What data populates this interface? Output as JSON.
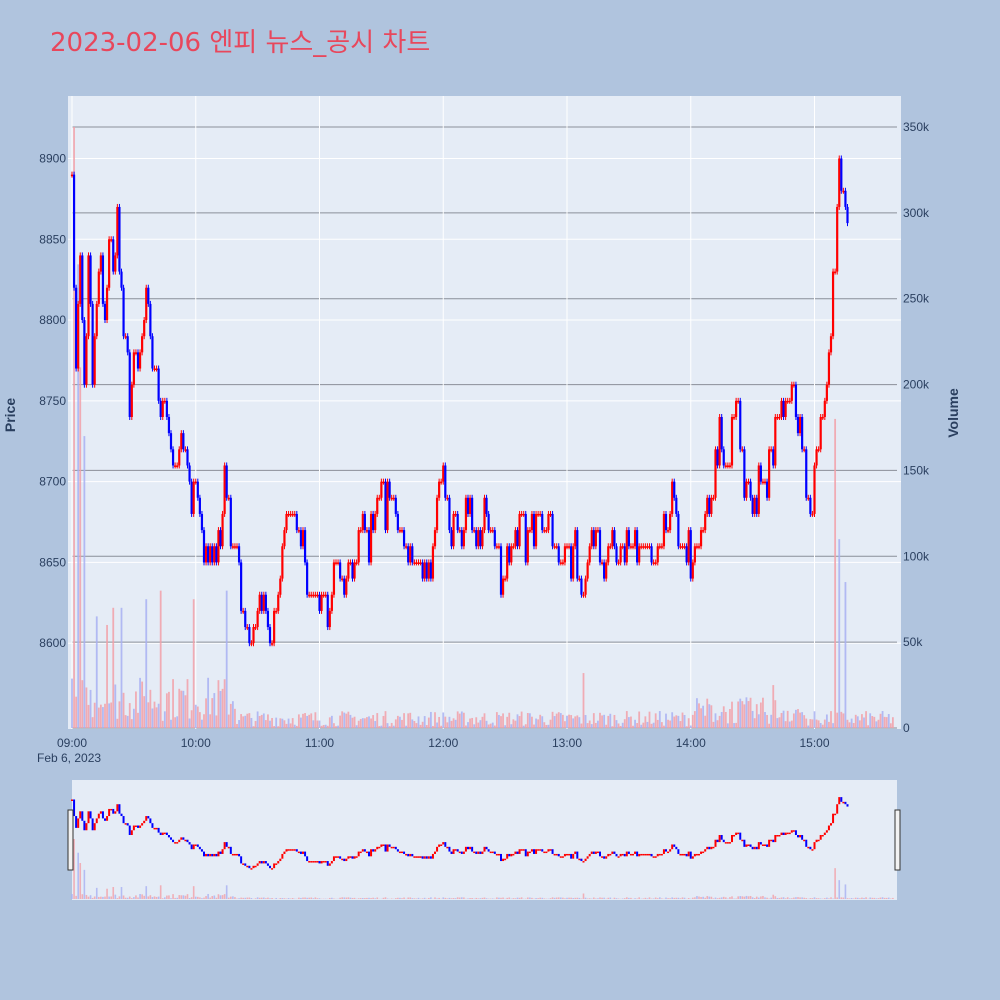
{
  "title": "2023-02-06 엔피 뉴스_공시 차트",
  "colors": {
    "page_bg": "#b0c4de",
    "plot_bg": "#e5ecf6",
    "up": "#ff0000",
    "down": "#0000ff",
    "title": "#e8475c",
    "axis_text": "#2a3f5f"
  },
  "chart_data": {
    "type": "candlestick",
    "title": "2023-02-06 엔피 뉴스_공시 차트",
    "date_label": "Feb 6, 2023",
    "xlabel": "",
    "ylabel_price": "Price",
    "ylabel_volume": "Volume",
    "x_range_minutes": [
      0,
      400
    ],
    "x_ticks": [
      {
        "m": 0,
        "label": "09:00"
      },
      {
        "m": 60,
        "label": "10:00"
      },
      {
        "m": 120,
        "label": "11:00"
      },
      {
        "m": 180,
        "label": "12:00"
      },
      {
        "m": 240,
        "label": "13:00"
      },
      {
        "m": 300,
        "label": "14:00"
      },
      {
        "m": 360,
        "label": "15:00"
      }
    ],
    "price_range": [
      8550,
      8930
    ],
    "price_ticks": [
      8600,
      8650,
      8700,
      8750,
      8800,
      8850,
      8900
    ],
    "volume_range": [
      0,
      350000
    ],
    "volume_ticks": [
      {
        "v": 0,
        "label": "0"
      },
      {
        "v": 50000,
        "label": "50k"
      },
      {
        "v": 100000,
        "label": "100k"
      },
      {
        "v": 150000,
        "label": "150k"
      },
      {
        "v": 200000,
        "label": "200k"
      },
      {
        "v": 250000,
        "label": "250k"
      },
      {
        "v": 300000,
        "label": "300k"
      },
      {
        "v": 350000,
        "label": "350k"
      }
    ],
    "grid": true,
    "rangeslider": true,
    "price_path": [
      [
        0,
        8890
      ],
      [
        2,
        8770
      ],
      [
        4,
        8840
      ],
      [
        6,
        8750
      ],
      [
        8,
        8830
      ],
      [
        10,
        8760
      ],
      [
        12,
        8810
      ],
      [
        14,
        8840
      ],
      [
        16,
        8790
      ],
      [
        18,
        8860
      ],
      [
        20,
        8830
      ],
      [
        22,
        8870
      ],
      [
        24,
        8810
      ],
      [
        26,
        8790
      ],
      [
        28,
        8750
      ],
      [
        30,
        8780
      ],
      [
        32,
        8760
      ],
      [
        34,
        8790
      ],
      [
        36,
        8810
      ],
      [
        38,
        8780
      ],
      [
        40,
        8770
      ],
      [
        42,
        8760
      ],
      [
        44,
        8740
      ],
      [
        46,
        8740
      ],
      [
        48,
        8720
      ],
      [
        50,
        8700
      ],
      [
        52,
        8730
      ],
      [
        54,
        8710
      ],
      [
        56,
        8700
      ],
      [
        58,
        8690
      ],
      [
        60,
        8700
      ],
      [
        62,
        8680
      ],
      [
        64,
        8660
      ],
      [
        66,
        8650
      ],
      [
        68,
        8660
      ],
      [
        70,
        8650
      ],
      [
        72,
        8660
      ],
      [
        74,
        8700
      ],
      [
        76,
        8680
      ],
      [
        78,
        8660
      ],
      [
        80,
        8650
      ],
      [
        82,
        8630
      ],
      [
        84,
        8610
      ],
      [
        86,
        8590
      ],
      [
        88,
        8610
      ],
      [
        90,
        8630
      ],
      [
        92,
        8620
      ],
      [
        94,
        8610
      ],
      [
        96,
        8600
      ],
      [
        98,
        8610
      ],
      [
        100,
        8630
      ],
      [
        102,
        8650
      ],
      [
        104,
        8680
      ],
      [
        106,
        8690
      ],
      [
        108,
        8680
      ],
      [
        110,
        8670
      ],
      [
        112,
        8660
      ],
      [
        114,
        8640
      ],
      [
        116,
        8630
      ],
      [
        118,
        8620
      ],
      [
        120,
        8630
      ],
      [
        122,
        8620
      ],
      [
        124,
        8620
      ],
      [
        126,
        8640
      ],
      [
        128,
        8650
      ],
      [
        130,
        8640
      ],
      [
        132,
        8640
      ],
      [
        134,
        8650
      ],
      [
        136,
        8640
      ],
      [
        138,
        8660
      ],
      [
        140,
        8680
      ],
      [
        142,
        8670
      ],
      [
        144,
        8660
      ],
      [
        146,
        8670
      ],
      [
        148,
        8680
      ],
      [
        150,
        8690
      ],
      [
        152,
        8680
      ],
      [
        154,
        8690
      ],
      [
        156,
        8680
      ],
      [
        158,
        8680
      ],
      [
        160,
        8670
      ],
      [
        162,
        8660
      ],
      [
        164,
        8650
      ],
      [
        166,
        8640
      ],
      [
        168,
        8650
      ],
      [
        170,
        8640
      ],
      [
        172,
        8640
      ],
      [
        174,
        8650
      ],
      [
        176,
        8660
      ],
      [
        178,
        8690
      ],
      [
        180,
        8700
      ],
      [
        182,
        8680
      ],
      [
        184,
        8660
      ],
      [
        186,
        8670
      ],
      [
        188,
        8660
      ],
      [
        190,
        8670
      ],
      [
        192,
        8690
      ],
      [
        194,
        8680
      ],
      [
        196,
        8670
      ],
      [
        198,
        8660
      ],
      [
        200,
        8680
      ],
      [
        202,
        8670
      ],
      [
        204,
        8660
      ],
      [
        206,
        8650
      ],
      [
        208,
        8640
      ],
      [
        210,
        8650
      ],
      [
        212,
        8660
      ],
      [
        214,
        8650
      ],
      [
        216,
        8660
      ],
      [
        218,
        8670
      ],
      [
        220,
        8660
      ],
      [
        222,
        8670
      ],
      [
        224,
        8670
      ],
      [
        226,
        8680
      ],
      [
        228,
        8670
      ],
      [
        230,
        8660
      ],
      [
        232,
        8670
      ],
      [
        234,
        8650
      ],
      [
        236,
        8660
      ],
      [
        238,
        8650
      ],
      [
        240,
        8660
      ],
      [
        242,
        8650
      ],
      [
        244,
        8660
      ],
      [
        246,
        8640
      ],
      [
        248,
        8630
      ],
      [
        250,
        8650
      ],
      [
        252,
        8660
      ],
      [
        254,
        8670
      ],
      [
        256,
        8660
      ],
      [
        258,
        8650
      ],
      [
        260,
        8660
      ],
      [
        262,
        8670
      ],
      [
        264,
        8660
      ],
      [
        266,
        8660
      ],
      [
        268,
        8650
      ],
      [
        270,
        8660
      ],
      [
        272,
        8650
      ],
      [
        274,
        8660
      ],
      [
        276,
        8660
      ],
      [
        278,
        8650
      ],
      [
        280,
        8660
      ],
      [
        282,
        8650
      ],
      [
        284,
        8650
      ],
      [
        286,
        8660
      ],
      [
        288,
        8670
      ],
      [
        290,
        8680
      ],
      [
        292,
        8690
      ],
      [
        294,
        8670
      ],
      [
        296,
        8660
      ],
      [
        298,
        8660
      ],
      [
        300,
        8650
      ],
      [
        302,
        8660
      ],
      [
        304,
        8660
      ],
      [
        306,
        8670
      ],
      [
        308,
        8690
      ],
      [
        310,
        8690
      ],
      [
        312,
        8710
      ],
      [
        314,
        8730
      ],
      [
        316,
        8710
      ],
      [
        318,
        8700
      ],
      [
        320,
        8730
      ],
      [
        322,
        8750
      ],
      [
        324,
        8720
      ],
      [
        326,
        8700
      ],
      [
        328,
        8690
      ],
      [
        330,
        8680
      ],
      [
        332,
        8690
      ],
      [
        334,
        8700
      ],
      [
        336,
        8690
      ],
      [
        338,
        8710
      ],
      [
        340,
        8720
      ],
      [
        342,
        8740
      ],
      [
        344,
        8750
      ],
      [
        346,
        8740
      ],
      [
        348,
        8750
      ],
      [
        350,
        8760
      ],
      [
        352,
        8740
      ],
      [
        354,
        8730
      ],
      [
        356,
        8700
      ],
      [
        358,
        8680
      ],
      [
        360,
        8700
      ],
      [
        362,
        8720
      ],
      [
        364,
        8740
      ],
      [
        366,
        8760
      ],
      [
        368,
        8790
      ],
      [
        370,
        8840
      ],
      [
        372,
        8900
      ],
      [
        374,
        8880
      ],
      [
        376,
        8850
      ]
    ],
    "volume_spikes": [
      {
        "m": 1,
        "v": 350000
      },
      {
        "m": 3,
        "v": 270000
      },
      {
        "m": 4,
        "v": 210000
      },
      {
        "m": 6,
        "v": 170000
      },
      {
        "m": 12,
        "v": 65000
      },
      {
        "m": 17,
        "v": 60000
      },
      {
        "m": 20,
        "v": 70000
      },
      {
        "m": 24,
        "v": 70000
      },
      {
        "m": 36,
        "v": 75000
      },
      {
        "m": 43,
        "v": 80000
      },
      {
        "m": 59,
        "v": 75000
      },
      {
        "m": 75,
        "v": 80000
      },
      {
        "m": 248,
        "v": 32000
      },
      {
        "m": 340,
        "v": 25000
      },
      {
        "m": 370,
        "v": 180000
      },
      {
        "m": 372,
        "v": 110000
      },
      {
        "m": 375,
        "v": 85000
      }
    ]
  }
}
